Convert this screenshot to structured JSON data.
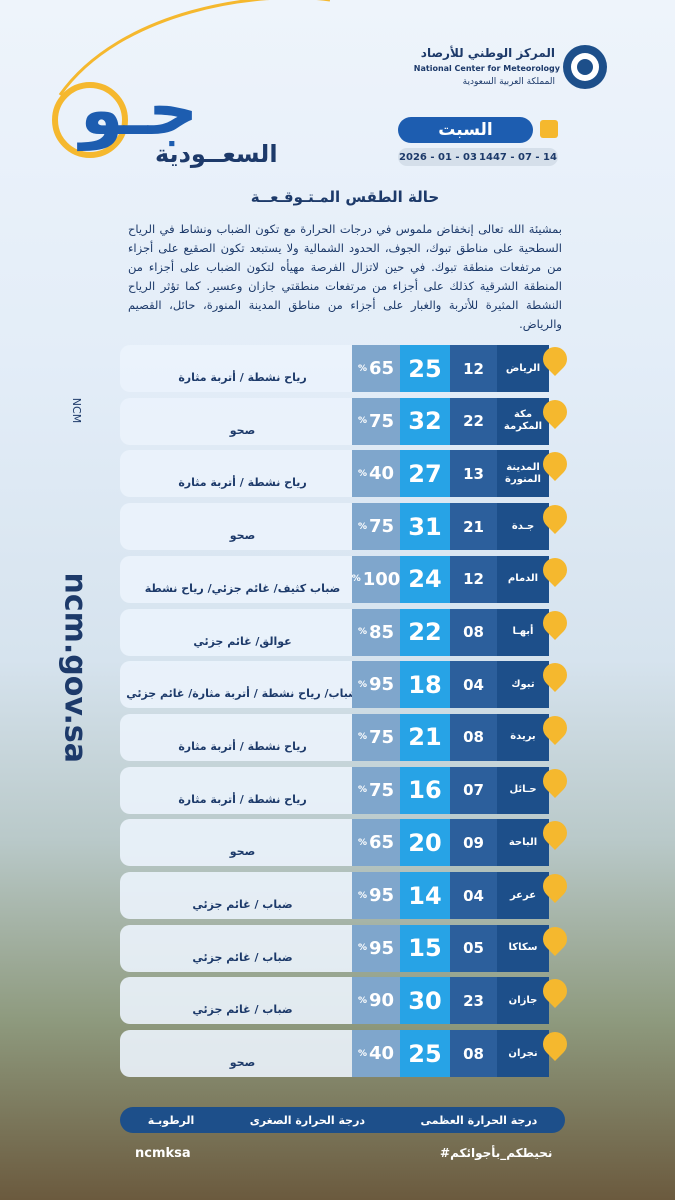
{
  "header": {
    "org_ar": "المركز الوطني للأرصاد",
    "org_en": "National Center for Meteorology",
    "country_ar": "المملكة العربية السعودية",
    "brand_big": "جـو",
    "brand_small": "السعــودية",
    "day": "السبت",
    "date_gregorian": "2026 - 01 - 03",
    "date_hijri": "1447 - 07 - 14"
  },
  "title": "حالة الطقس المـتـوقـعــة",
  "summary": "بمشيئة الله تعالى إنخفاض ملموس في درجات الحرارة مع تكون الضباب ونشاط في الرياح السطحية على مناطق تبوك، الجوف، الحدود الشمالية ولا يستبعد تكون الصقيع على أجزاء من مرتفعات منطقة تبوك. في حين لاتزال الفرصة مهيأه لتكون الضباب على أجزاء من المنطقة الشرقية كذلك على أجزاء من مرتفعات منطقتي جازان وعسير. كما تؤثر الرياح النشطة المثيرة للأتربة والغبار على أجزاء من مناطق المدينة المنورة، حائل، القصيم والرياض.",
  "humidity_unit": "%",
  "rows": [
    {
      "city": "الرياض",
      "min": "12",
      "max": "25",
      "humidity": "65",
      "condition": "رياح نشطة / أتربة مثارة"
    },
    {
      "city": "مكة المكرمة",
      "min": "22",
      "max": "32",
      "humidity": "75",
      "condition": "صحو"
    },
    {
      "city": "المدينة المنورة",
      "min": "13",
      "max": "27",
      "humidity": "40",
      "condition": "رياح نشطة / أتربة مثارة"
    },
    {
      "city": "جـدة",
      "min": "21",
      "max": "31",
      "humidity": "75",
      "condition": "صحو"
    },
    {
      "city": "الدمام",
      "min": "12",
      "max": "24",
      "humidity": "100",
      "condition": "ضباب كثيف/ غائم جزئي/ رياح نشطة"
    },
    {
      "city": "أبهـا",
      "min": "08",
      "max": "22",
      "humidity": "85",
      "condition": "عوالق/ غائم جزئي"
    },
    {
      "city": "تبوك",
      "min": "04",
      "max": "18",
      "humidity": "95",
      "condition": "ضباب/ رياح نشطة / أتربة مثارة/ غائم جزئي"
    },
    {
      "city": "بريدة",
      "min": "08",
      "max": "21",
      "humidity": "75",
      "condition": "رياح نشطة / أتربة مثارة"
    },
    {
      "city": "حـائل",
      "min": "07",
      "max": "16",
      "humidity": "75",
      "condition": "رياح نشطة / أتربة مثارة"
    },
    {
      "city": "الباحة",
      "min": "09",
      "max": "20",
      "humidity": "65",
      "condition": "صحو"
    },
    {
      "city": "عرعر",
      "min": "04",
      "max": "14",
      "humidity": "95",
      "condition": "ضباب / غائم جزئي"
    },
    {
      "city": "سكاكا",
      "min": "05",
      "max": "15",
      "humidity": "95",
      "condition": "ضباب / غائم جزئي"
    },
    {
      "city": "جازان",
      "min": "23",
      "max": "30",
      "humidity": "90",
      "condition": "ضباب / غائم جزئي"
    },
    {
      "city": "نجران",
      "min": "08",
      "max": "25",
      "humidity": "40",
      "condition": "صحو"
    }
  ],
  "legend": {
    "max": "درجة الحرارة العظمى",
    "min": "درجة الحرارة الصغرى",
    "humidity": "الرطوبـة"
  },
  "side": {
    "ncm": "NCM",
    "site": "ncm.gov.sa"
  },
  "footer": {
    "social": "ncmksa",
    "hashtag": "#نحيطكم_بأجوائكم"
  }
}
